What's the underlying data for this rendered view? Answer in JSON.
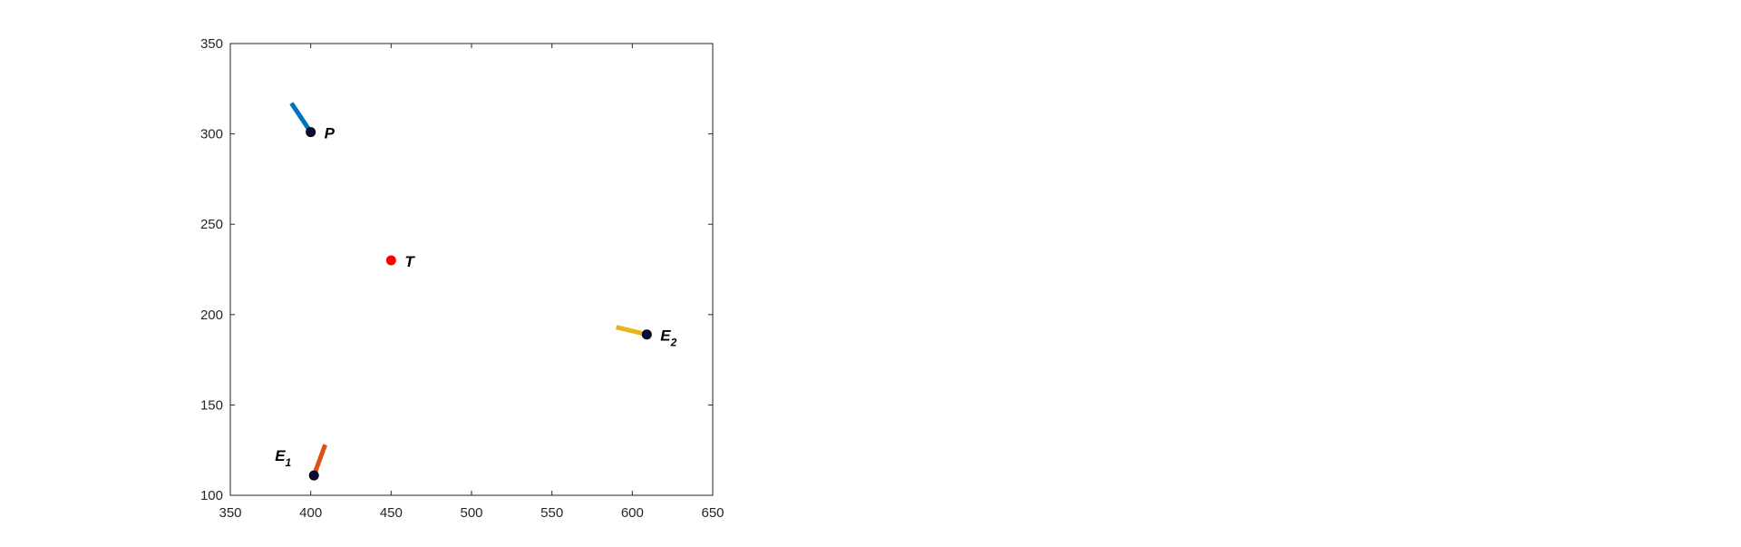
{
  "chart_data": {
    "type": "scatter",
    "title": "",
    "xlabel": "",
    "ylabel": "",
    "xlim": [
      350,
      650
    ],
    "ylim": [
      100,
      350
    ],
    "xticks": [
      350,
      400,
      450,
      500,
      550,
      600,
      650
    ],
    "yticks": [
      100,
      150,
      200,
      250,
      300,
      350
    ],
    "grid": false,
    "box": true,
    "points": [
      {
        "label": "P",
        "sub": "",
        "x": 400,
        "y": 301,
        "color": "#0b0b3b",
        "heading_to": [
          388,
          317
        ],
        "heading_color": "#0072BD"
      },
      {
        "label": "E",
        "sub": "1",
        "x": 402,
        "y": 111,
        "color": "#0b0b3b",
        "heading_to": [
          409,
          128
        ],
        "heading_color": "#D95319"
      },
      {
        "label": "E",
        "sub": "2",
        "x": 609,
        "y": 189,
        "color": "#0b0b3b",
        "heading_to": [
          590,
          193
        ],
        "heading_color": "#EDB120"
      },
      {
        "label": "T",
        "sub": "",
        "x": 450,
        "y": 230,
        "color": "#ff0000",
        "heading_to": null,
        "heading_color": null
      }
    ]
  }
}
